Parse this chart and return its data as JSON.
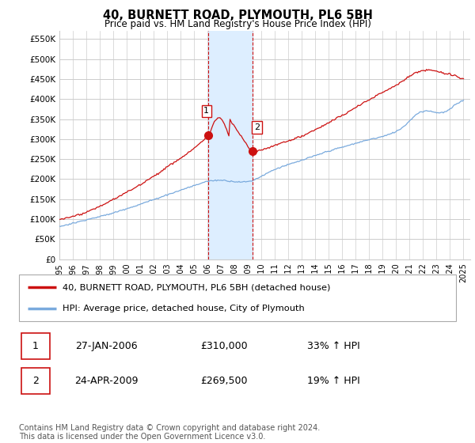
{
  "title": "40, BURNETT ROAD, PLYMOUTH, PL6 5BH",
  "subtitle": "Price paid vs. HM Land Registry's House Price Index (HPI)",
  "ylabel_ticks": [
    "£0",
    "£50K",
    "£100K",
    "£150K",
    "£200K",
    "£250K",
    "£300K",
    "£350K",
    "£400K",
    "£450K",
    "£500K",
    "£550K"
  ],
  "ylabel_values": [
    0,
    50000,
    100000,
    150000,
    200000,
    250000,
    300000,
    350000,
    400000,
    450000,
    500000,
    550000
  ],
  "ylim": [
    0,
    570000
  ],
  "xlim_start": 1995.0,
  "xlim_end": 2025.5,
  "hpi_color": "#7aaadd",
  "price_color": "#cc1111",
  "sale1_x": 2006.07,
  "sale1_y": 310000,
  "sale1_label": "1",
  "sale2_x": 2009.31,
  "sale2_y": 269500,
  "sale2_label": "2",
  "shade_color": "#ddeeff",
  "vline_color": "#cc1111",
  "background_color": "#ffffff",
  "grid_color": "#cccccc",
  "legend_line1": "40, BURNETT ROAD, PLYMOUTH, PL6 5BH (detached house)",
  "legend_line2": "HPI: Average price, detached house, City of Plymouth",
  "table_row1": [
    "1",
    "27-JAN-2006",
    "£310,000",
    "33% ↑ HPI"
  ],
  "table_row2": [
    "2",
    "24-APR-2009",
    "£269,500",
    "19% ↑ HPI"
  ],
  "footer": "Contains HM Land Registry data © Crown copyright and database right 2024.\nThis data is licensed under the Open Government Licence v3.0.",
  "xtick_years": [
    1995,
    1996,
    1997,
    1998,
    1999,
    2000,
    2001,
    2002,
    2003,
    2004,
    2005,
    2006,
    2007,
    2008,
    2009,
    2010,
    2011,
    2012,
    2013,
    2014,
    2015,
    2016,
    2017,
    2018,
    2019,
    2020,
    2021,
    2022,
    2023,
    2024,
    2025
  ]
}
